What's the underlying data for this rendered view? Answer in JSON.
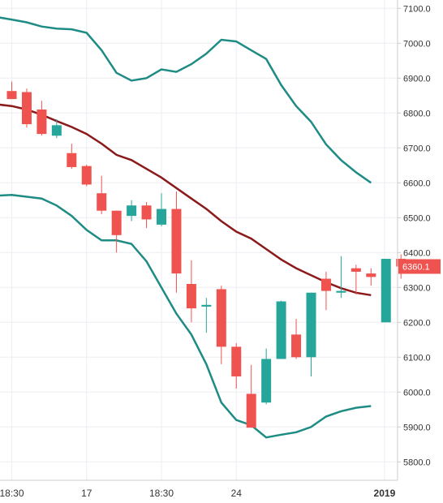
{
  "chart_data": {
    "type": "candlestick",
    "x_tick_labels": [
      "18:30",
      "17",
      "18:30",
      "24",
      "2019"
    ],
    "y_ticks": [
      5800,
      5900,
      6000,
      6100,
      6200,
      6300,
      6400,
      6500,
      6600,
      6700,
      6800,
      6900,
      7000,
      7100
    ],
    "y_tick_labels": [
      "5800.0",
      "5900.0",
      "6000.0",
      "6100.0",
      "6200.0",
      "6300.0",
      "6400.0",
      "6500.0",
      "6600.0",
      "6700.0",
      "6800.0",
      "6900.0",
      "7000.0",
      "7100.0"
    ],
    "ylim": [
      5770,
      7110
    ],
    "last_price_label": "6360.1",
    "grid": true,
    "colors": {
      "up": "#26a69a",
      "down": "#ef5350",
      "band": "#1e8c84",
      "basis": "#8b1a1a",
      "grid": "#eceef2",
      "axis_text": "#333333"
    },
    "candles": [
      {
        "open": 6863,
        "high": 6890,
        "low": 6840,
        "close": 6840
      },
      {
        "open": 6860,
        "high": 6870,
        "low": 6758,
        "close": 6768
      },
      {
        "open": 6810,
        "high": 6835,
        "low": 6735,
        "close": 6740
      },
      {
        "open": 6735,
        "high": 6782,
        "low": 6728,
        "close": 6765
      },
      {
        "open": 6685,
        "high": 6712,
        "low": 6640,
        "close": 6645
      },
      {
        "open": 6648,
        "high": 6652,
        "low": 6590,
        "close": 6595
      },
      {
        "open": 6570,
        "high": 6620,
        "low": 6510,
        "close": 6520
      },
      {
        "open": 6520,
        "high": 6520,
        "low": 6400,
        "close": 6450
      },
      {
        "open": 6505,
        "high": 6550,
        "low": 6490,
        "close": 6535
      },
      {
        "open": 6535,
        "high": 6545,
        "low": 6470,
        "close": 6495
      },
      {
        "open": 6480,
        "high": 6570,
        "low": 6475,
        "close": 6525
      },
      {
        "open": 6525,
        "high": 6575,
        "low": 6285,
        "close": 6340
      },
      {
        "open": 6310,
        "high": 6378,
        "low": 6200,
        "close": 6240
      },
      {
        "open": 6245,
        "high": 6270,
        "low": 6170,
        "close": 6250
      },
      {
        "open": 6295,
        "high": 6305,
        "low": 6080,
        "close": 6130
      },
      {
        "open": 6130,
        "high": 6140,
        "low": 6010,
        "close": 6045
      },
      {
        "open": 5995,
        "high": 6078,
        "low": 5898,
        "close": 5898
      },
      {
        "open": 5970,
        "high": 6125,
        "low": 5965,
        "close": 6095
      },
      {
        "open": 6095,
        "high": 6262,
        "low": 6095,
        "close": 6260
      },
      {
        "open": 6165,
        "high": 6210,
        "low": 6095,
        "close": 6100
      },
      {
        "open": 6100,
        "high": 6285,
        "low": 6045,
        "close": 6285
      },
      {
        "open": 6325,
        "high": 6345,
        "low": 6235,
        "close": 6290
      },
      {
        "open": 6285,
        "high": 6390,
        "low": 6270,
        "close": 6290
      },
      {
        "open": 6355,
        "high": 6365,
        "low": 6280,
        "close": 6345
      },
      {
        "open": 6340,
        "high": 6355,
        "low": 6305,
        "close": 6330
      },
      {
        "open": 6200,
        "high": 6382,
        "low": 6200,
        "close": 6382
      },
      {
        "open": 6382,
        "high": 6395,
        "low": 6325,
        "close": 6360
      }
    ],
    "upper_band": [
      7075,
      7068,
      7060,
      7048,
      7042,
      7040,
      7030,
      6980,
      6915,
      6893,
      6900,
      6925,
      6918,
      6940,
      6970,
      7010,
      7005,
      6980,
      6955,
      6880,
      6820,
      6775,
      6710,
      6665,
      6630,
      6600
    ],
    "basis": [
      6825,
      6820,
      6810,
      6795,
      6777,
      6760,
      6740,
      6712,
      6680,
      6665,
      6640,
      6615,
      6585,
      6555,
      6525,
      6490,
      6460,
      6440,
      6410,
      6380,
      6355,
      6335,
      6315,
      6298,
      6285,
      6278
    ],
    "lower_band": [
      6563,
      6565,
      6560,
      6555,
      6535,
      6505,
      6465,
      6435,
      6435,
      6425,
      6375,
      6300,
      6225,
      6165,
      6080,
      5970,
      5920,
      5905,
      5870,
      5878,
      5885,
      5900,
      5930,
      5945,
      5955,
      5960
    ]
  }
}
